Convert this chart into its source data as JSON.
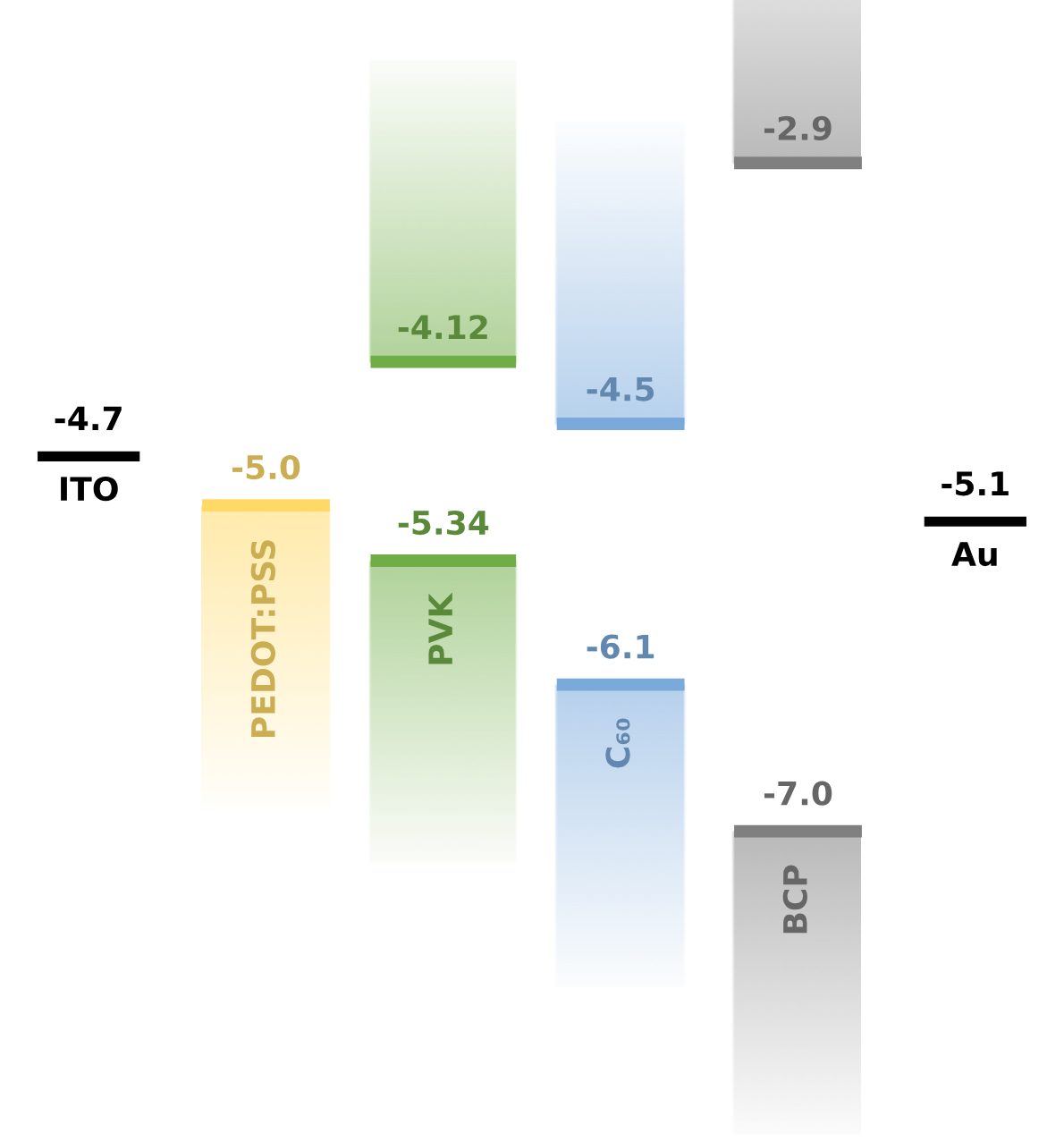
{
  "chart_data": {
    "type": "other",
    "categories": [
      "ITO",
      "PEDOT:PSS",
      "PVK",
      "C₆₀",
      "BCP",
      "Au"
    ],
    "series": [
      {
        "type": "line",
        "color": "#000000",
        "values": [
          -4.7,
          null,
          null,
          null,
          null,
          -5.1
        ]
      },
      {
        "colors": [
          null,
          "#ffd966",
          "#70ad47",
          "#7aaadc",
          "#808080",
          null
        ],
        "values": [
          null,
          -5.0,
          -5.34,
          -6.1,
          -7.0,
          null
        ],
        "value_labels": [
          null,
          "-5.0",
          "-5.34",
          "-6.1",
          "-7.0",
          null
        ]
      },
      {
        "colors": [
          null,
          null,
          "#70ad47",
          "#7aaadc",
          "#808080",
          null
        ],
        "values": [
          null,
          null,
          -4.12,
          -4.5,
          -2.9,
          null
        ]
      }
    ],
    "data_labels": true
  }
}
